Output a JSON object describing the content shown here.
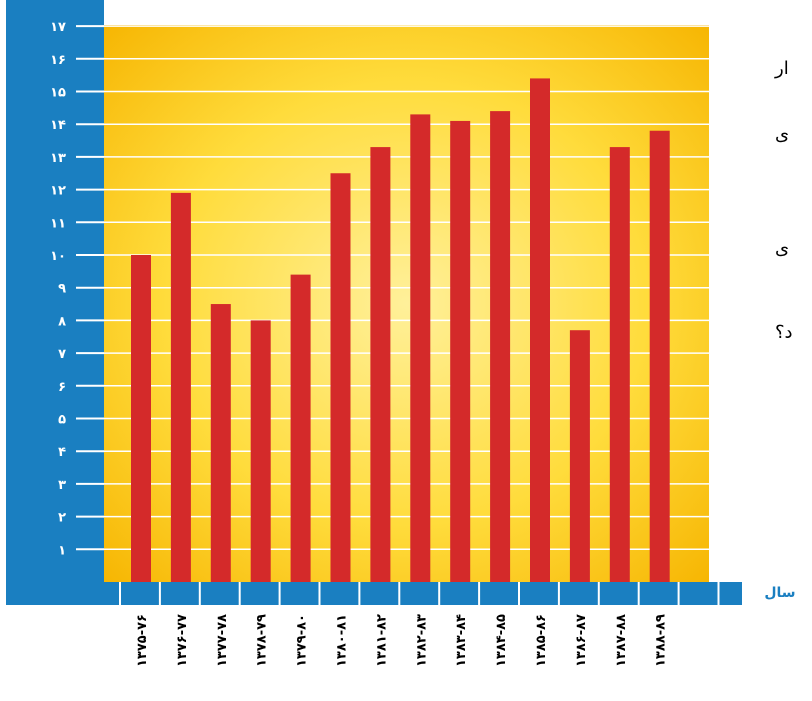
{
  "chart_data": {
    "type": "bar",
    "title": "",
    "xlabel": "سال",
    "ylabel": "",
    "ylim": [
      0,
      17.8
    ],
    "yticks": [
      "۱",
      "۲",
      "۳",
      "۴",
      "۵",
      "۶",
      "۷",
      "۸",
      "۹",
      "۱۰",
      "۱۱",
      "۱۲",
      "۱۳",
      "۱۴",
      "۱۵",
      "۱۶",
      "۱۷"
    ],
    "categories": [
      "۱۳۷۵-۷۶",
      "۱۳۷۶-۷۷",
      "۱۳۷۷-۷۸",
      "۱۳۷۸-۷۹",
      "۱۳۷۹-۸۰",
      "۱۳۸۰-۸۱",
      "۱۳۸۱-۸۲",
      "۱۳۸۲-۸۳",
      "۱۳۸۳-۸۴",
      "۱۳۸۴-۸۵",
      "۱۳۸۵-۸۶",
      "۱۳۸۶-۸۷",
      "۱۳۸۷-۸۸",
      "۱۳۸۸-۸۹"
    ],
    "values": [
      10.0,
      11.9,
      8.5,
      8.0,
      9.4,
      12.5,
      13.3,
      14.3,
      14.1,
      14.4,
      15.4,
      7.7,
      13.3,
      13.8
    ],
    "grid": true,
    "colors": {
      "bar": "#d42a2a",
      "background_edge": "#f6b400",
      "background_center": "#fff09a",
      "axis_panel": "#1a7fc1",
      "gridline": "#ffffff"
    }
  },
  "side_text": [
    "ار",
    "ی",
    "ی",
    "د؟"
  ]
}
